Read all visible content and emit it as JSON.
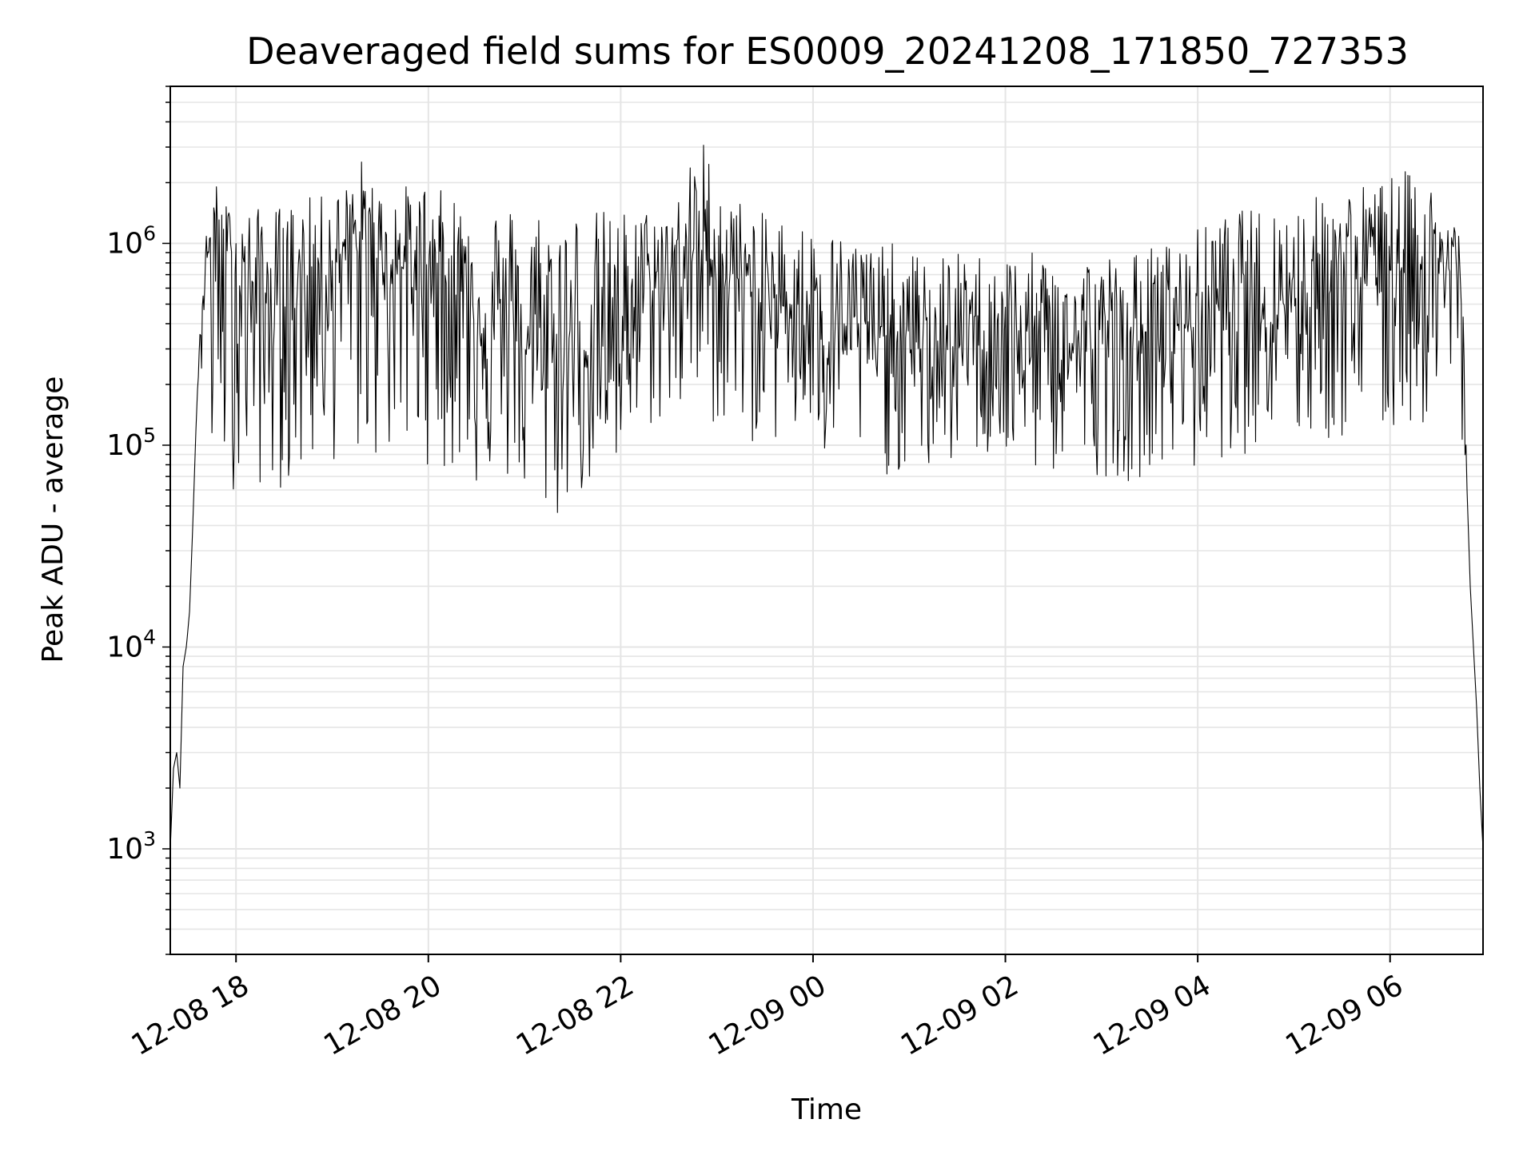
{
  "chart_data": {
    "type": "line",
    "title": "Deaveraged field sums for ES0009_20241208_171850_727353",
    "xlabel": "Time",
    "ylabel": "Peak ADU - average",
    "y_scale": "log",
    "ylim": [
      300,
      6000000
    ],
    "xlim": [
      "2024-12-08 17:19",
      "2024-12-09 06:58"
    ],
    "grid": true,
    "line_color": "#000000",
    "grid_color": "#e5e5e5",
    "x_ticks": [
      {
        "value": "2024-12-08 18:00",
        "label": "12-08 18"
      },
      {
        "value": "2024-12-08 20:00",
        "label": "12-08 20"
      },
      {
        "value": "2024-12-08 22:00",
        "label": "12-08 22"
      },
      {
        "value": "2024-12-09 00:00",
        "label": "12-09 00"
      },
      {
        "value": "2024-12-09 02:00",
        "label": "12-09 02"
      },
      {
        "value": "2024-12-09 04:00",
        "label": "12-09 04"
      },
      {
        "value": "2024-12-09 06:00",
        "label": "12-09 06"
      }
    ],
    "y_ticks": [
      {
        "value": 1000,
        "base": "10",
        "exp": "3"
      },
      {
        "value": 10000,
        "base": "10",
        "exp": "4"
      },
      {
        "value": 100000,
        "base": "10",
        "exp": "5"
      },
      {
        "value": 1000000,
        "base": "10",
        "exp": "6"
      }
    ],
    "series": [
      {
        "x": [
          "2024-12-08 17:19",
          "2024-12-08 17:21",
          "2024-12-08 17:23",
          "2024-12-08 17:25",
          "2024-12-08 17:27",
          "2024-12-08 17:29",
          "2024-12-08 17:31",
          "2024-12-08 17:33",
          "2024-12-08 17:35",
          "2024-12-08 17:37",
          "2024-12-08 17:39",
          "2024-12-08 17:41",
          "2024-12-08 17:43",
          "2024-12-08 17:45",
          "2024-12-08 17:50",
          "2024-12-08 17:55",
          "2024-12-08 18:00",
          "2024-12-08 18:10",
          "2024-12-08 18:20",
          "2024-12-08 18:30",
          "2024-12-08 18:40",
          "2024-12-08 18:50",
          "2024-12-08 19:00",
          "2024-12-08 19:10",
          "2024-12-08 19:20",
          "2024-12-08 19:30",
          "2024-12-08 19:40",
          "2024-12-08 19:50",
          "2024-12-08 20:00",
          "2024-12-08 20:10",
          "2024-12-08 20:20",
          "2024-12-08 20:30",
          "2024-12-08 20:40",
          "2024-12-08 20:50",
          "2024-12-08 21:00",
          "2024-12-08 21:10",
          "2024-12-08 21:20",
          "2024-12-08 21:30",
          "2024-12-08 21:40",
          "2024-12-08 21:50",
          "2024-12-08 22:00",
          "2024-12-08 22:10",
          "2024-12-08 22:20",
          "2024-12-08 22:30",
          "2024-12-08 22:40",
          "2024-12-08 22:50",
          "2024-12-08 23:00",
          "2024-12-08 23:10",
          "2024-12-08 23:20",
          "2024-12-08 23:30",
          "2024-12-08 23:40",
          "2024-12-08 23:50",
          "2024-12-09 00:00",
          "2024-12-09 00:10",
          "2024-12-09 00:20",
          "2024-12-09 00:30",
          "2024-12-09 00:40",
          "2024-12-09 00:50",
          "2024-12-09 01:00",
          "2024-12-09 01:10",
          "2024-12-09 01:20",
          "2024-12-09 01:30",
          "2024-12-09 01:40",
          "2024-12-09 01:50",
          "2024-12-09 02:00",
          "2024-12-09 02:10",
          "2024-12-09 02:20",
          "2024-12-09 02:30",
          "2024-12-09 02:40",
          "2024-12-09 02:50",
          "2024-12-09 03:00",
          "2024-12-09 03:10",
          "2024-12-09 03:20",
          "2024-12-09 03:30",
          "2024-12-09 03:40",
          "2024-12-09 03:50",
          "2024-12-09 04:00",
          "2024-12-09 04:10",
          "2024-12-09 04:20",
          "2024-12-09 04:30",
          "2024-12-09 04:40",
          "2024-12-09 04:50",
          "2024-12-09 05:00",
          "2024-12-09 05:10",
          "2024-12-09 05:20",
          "2024-12-09 05:30",
          "2024-12-09 05:40",
          "2024-12-09 05:50",
          "2024-12-09 06:00",
          "2024-12-09 06:10",
          "2024-12-09 06:20",
          "2024-12-09 06:30",
          "2024-12-09 06:40",
          "2024-12-09 06:45",
          "2024-12-09 06:48",
          "2024-12-09 06:50",
          "2024-12-09 06:52",
          "2024-12-09 06:54",
          "2024-12-09 06:56",
          "2024-12-09 06:58"
        ],
        "y": [
          1000,
          2500,
          3000,
          2000,
          8000,
          10000,
          15000,
          40000,
          120000,
          300000,
          500000,
          800000,
          900000,
          1000000,
          900000,
          800000,
          700000,
          600000,
          500000,
          500000,
          600000,
          700000,
          800000,
          900000,
          1000000,
          900000,
          800000,
          700000,
          800000,
          700000,
          600000,
          500000,
          400000,
          400000,
          300000,
          300000,
          300000,
          300000,
          300000,
          300000,
          400000,
          500000,
          600000,
          700000,
          800000,
          900000,
          800000,
          700000,
          600000,
          500000,
          500000,
          500000,
          500000,
          400000,
          400000,
          400000,
          350000,
          350000,
          300000,
          300000,
          300000,
          300000,
          350000,
          350000,
          350000,
          300000,
          300000,
          300000,
          300000,
          300000,
          300000,
          300000,
          300000,
          350000,
          350000,
          400000,
          400000,
          500000,
          500000,
          500000,
          500000,
          550000,
          550000,
          600000,
          600000,
          650000,
          700000,
          700000,
          800000,
          800000,
          800000,
          800000,
          700000,
          600000,
          60000,
          20000,
          10000,
          5000,
          2000,
          1000
        ],
        "low": [
          1000,
          2500,
          3000,
          2000,
          8000,
          10000,
          15000,
          40000,
          120000,
          200000,
          200000,
          150000,
          100000,
          60000,
          60000,
          60000,
          60000,
          60000,
          60000,
          60000,
          60000,
          80000,
          80000,
          80000,
          80000,
          80000,
          80000,
          80000,
          80000,
          70000,
          70000,
          60000,
          60000,
          60000,
          50000,
          40000,
          40000,
          50000,
          60000,
          60000,
          60000,
          100000,
          120000,
          120000,
          130000,
          120000,
          120000,
          100000,
          100000,
          100000,
          100000,
          100000,
          90000,
          70000,
          80000,
          80000,
          70000,
          70000,
          70000,
          70000,
          70000,
          80000,
          90000,
          80000,
          70000,
          70000,
          70000,
          70000,
          70000,
          70000,
          70000,
          70000,
          60000,
          80000,
          70000,
          70000,
          70000,
          80000,
          90000,
          90000,
          100000,
          100000,
          100000,
          90000,
          100000,
          100000,
          100000,
          100000,
          100000,
          120000,
          120000,
          120000,
          120000,
          100000,
          60000,
          20000,
          10000,
          5000,
          2000,
          1000
        ],
        "high": [
          1000,
          2500,
          3000,
          2000,
          8000,
          10000,
          15000,
          40000,
          120000,
          300000,
          600000,
          1000000,
          1500000,
          2600000,
          1600000,
          1600000,
          1500000,
          1500000,
          1500000,
          1600000,
          1700000,
          1700000,
          1800000,
          2000000,
          2800000,
          1800000,
          1900000,
          2000000,
          2000000,
          1800000,
          1800000,
          1700000,
          1700000,
          1600000,
          1600000,
          1600000,
          1600000,
          1600000,
          1500000,
          1500000,
          1500000,
          1500000,
          1500000,
          1600000,
          2000000,
          3900000,
          2000000,
          1800000,
          1500000,
          1400000,
          1400000,
          1300000,
          1200000,
          1200000,
          1100000,
          1100000,
          1000000,
          1000000,
          900000,
          900000,
          900000,
          900000,
          900000,
          900000,
          900000,
          900000,
          900000,
          900000,
          900000,
          900000,
          900000,
          900000,
          900000,
          1000000,
          1000000,
          1100000,
          1200000,
          1300000,
          1400000,
          1500000,
          1500000,
          1600000,
          1600000,
          1700000,
          1800000,
          1900000,
          2000000,
          2000000,
          2200000,
          2300000,
          2100000,
          1900000,
          1500000,
          1000000,
          60000,
          20000,
          10000,
          5000,
          2000,
          1000
        ]
      }
    ]
  }
}
